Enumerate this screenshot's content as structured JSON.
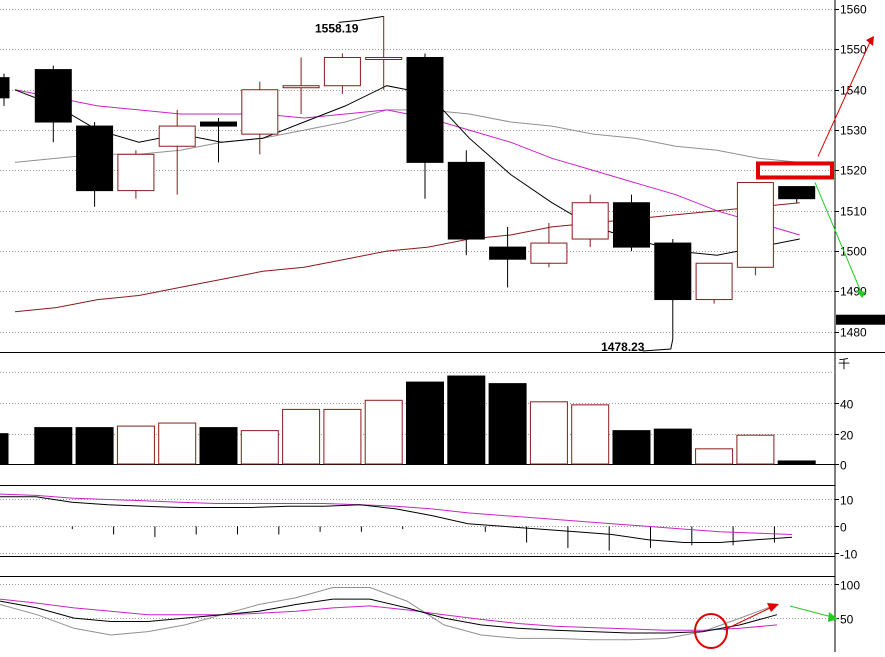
{
  "chart_data": {
    "type": "candlestick",
    "colors": {
      "up": "#8b1a1a",
      "down": "#000000",
      "ma_short": "#000000",
      "ma_mid": "#cc22cc",
      "ma_long": "#8b1a1a",
      "ma_extra": "#909090",
      "annotation_red": "#e00000",
      "annotation_green": "#22cc22"
    },
    "price": {
      "ylim": [
        1475,
        1562
      ],
      "ticks": [
        1480,
        1490,
        1500,
        1510,
        1520,
        1530,
        1540,
        1550,
        1560
      ],
      "tick_labels": [
        "1480",
        "1490",
        "1500",
        "1510",
        "1520",
        "1530",
        "1540",
        "1550",
        "1560"
      ],
      "grid": true,
      "current_price": 1483,
      "max_label": "1558.19",
      "max_value": 1558.19,
      "min_label": "1478.23",
      "min_value": 1478.23,
      "candles": [
        {
          "open": 1543,
          "close": 1538,
          "high": 1544,
          "low": 1536,
          "up": false,
          "partial": true
        },
        {
          "open": 1545,
          "close": 1532,
          "high": 1546,
          "low": 1527,
          "up": false
        },
        {
          "open": 1531,
          "close": 1515,
          "high": 1532,
          "low": 1511,
          "up": false
        },
        {
          "open": 1515,
          "close": 1524,
          "high": 1525,
          "low": 1513,
          "up": true
        },
        {
          "open": 1526,
          "close": 1531,
          "high": 1535,
          "low": 1514,
          "up": true
        },
        {
          "open": 1532,
          "close": 1531,
          "high": 1533,
          "low": 1522,
          "up": false
        },
        {
          "open": 1529,
          "close": 1540,
          "high": 1542,
          "low": 1524,
          "up": true
        },
        {
          "open": 1541,
          "close": 1541,
          "high": 1548,
          "low": 1534,
          "up": true
        },
        {
          "open": 1541,
          "close": 1548,
          "high": 1549,
          "low": 1539,
          "up": true
        },
        {
          "open": 1548,
          "close": 1548,
          "high": 1558.19,
          "low": 1540,
          "up": true
        },
        {
          "open": 1548,
          "close": 1522,
          "high": 1549,
          "low": 1513,
          "up": false
        },
        {
          "open": 1522,
          "close": 1503,
          "high": 1525,
          "low": 1499,
          "up": false
        },
        {
          "open": 1501,
          "close": 1498,
          "high": 1506,
          "low": 1491,
          "up": false
        },
        {
          "open": 1497,
          "close": 1502,
          "high": 1507,
          "low": 1496,
          "up": true
        },
        {
          "open": 1503,
          "close": 1512,
          "high": 1514,
          "low": 1501,
          "up": true
        },
        {
          "open": 1512,
          "close": 1501,
          "high": 1514,
          "low": 1500,
          "up": false
        },
        {
          "open": 1502,
          "close": 1488,
          "high": 1503,
          "low": 1478.23,
          "up": false
        },
        {
          "open": 1488,
          "close": 1497,
          "high": 1497,
          "low": 1487,
          "up": true
        },
        {
          "open": 1496,
          "close": 1517,
          "high": 1517,
          "low": 1494,
          "up": true
        },
        {
          "open": 1516,
          "close": 1513,
          "high": 1516,
          "low": 1512,
          "up": false
        }
      ],
      "ma_short": [
        1540,
        1536,
        1530,
        1527,
        1529,
        1527,
        1528,
        1532,
        1536,
        1541,
        1539,
        1528,
        1519,
        1512,
        1506,
        1503,
        1500,
        1499,
        1501,
        1503
      ],
      "ma_mid": [
        1540,
        1538,
        1536,
        1535,
        1534,
        1534,
        1534,
        1533,
        1534,
        1535,
        1533,
        1530,
        1527,
        1523,
        1520,
        1517,
        1514,
        1510,
        1507,
        1504
      ],
      "ma_long": [
        1485,
        1486,
        1488,
        1489,
        1491,
        1493,
        1495,
        1496,
        1498,
        1500,
        1501,
        1503,
        1504,
        1506,
        1507,
        1508,
        1509,
        1510,
        1511,
        1512
      ],
      "ma_extra": [
        1522,
        1523,
        1524,
        1524,
        1525,
        1527,
        1528,
        1530,
        1532,
        1535,
        1535,
        1534,
        1532,
        1531,
        1529,
        1528,
        1526,
        1525,
        1523,
        1522
      ]
    },
    "volume": {
      "unit_label": "千",
      "ylim": [
        0,
        60
      ],
      "ticks": [
        0,
        20,
        40
      ],
      "tick_labels": [
        "0",
        "20",
        "40"
      ],
      "values": [
        20,
        24,
        24,
        25,
        27,
        24,
        22,
        36,
        36,
        42,
        54,
        58,
        53,
        41,
        39,
        22,
        23,
        10,
        19,
        2
      ]
    },
    "osc1": {
      "ylim": [
        -11,
        15
      ],
      "ticks": [
        -10,
        0,
        10
      ],
      "tick_labels": [
        "-10",
        "0",
        "10"
      ],
      "histogram": [
        0,
        -1,
        -3,
        -4,
        -3,
        -3,
        -3,
        -2,
        -2,
        -1,
        0,
        -2,
        -6,
        -8,
        -9,
        -8,
        -7,
        -7,
        -6,
        -5,
        -4,
        -3,
        -2
      ],
      "line_a": [
        11,
        11,
        9,
        8,
        7.5,
        7,
        7,
        7,
        7.5,
        7.5,
        8,
        6.5,
        4,
        1,
        0,
        -1,
        -2,
        -3,
        -5,
        -6,
        -6,
        -5,
        -4
      ],
      "line_b": [
        12,
        11.5,
        10.5,
        10,
        9.5,
        9,
        8.5,
        8.5,
        8.5,
        8.5,
        8,
        7.5,
        6.5,
        5,
        4,
        3,
        2,
        1,
        0,
        -1,
        -2,
        -2.5,
        -3
      ]
    },
    "osc2": {
      "ylim": [
        0,
        112
      ],
      "ticks": [
        50,
        100
      ],
      "tick_labels": [
        "50",
        "100"
      ],
      "k": [
        75,
        65,
        50,
        45,
        45,
        50,
        55,
        60,
        70,
        78,
        78,
        65,
        50,
        40,
        35,
        32,
        30,
        28,
        28,
        30,
        40,
        55
      ],
      "d": [
        78,
        72,
        65,
        60,
        55,
        55,
        55,
        57,
        60,
        65,
        68,
        62,
        55,
        48,
        42,
        38,
        36,
        34,
        32,
        32,
        35,
        40
      ],
      "j": [
        70,
        55,
        35,
        25,
        30,
        40,
        55,
        70,
        80,
        95,
        95,
        75,
        40,
        25,
        20,
        20,
        18,
        18,
        20,
        30,
        50,
        70
      ]
    }
  }
}
